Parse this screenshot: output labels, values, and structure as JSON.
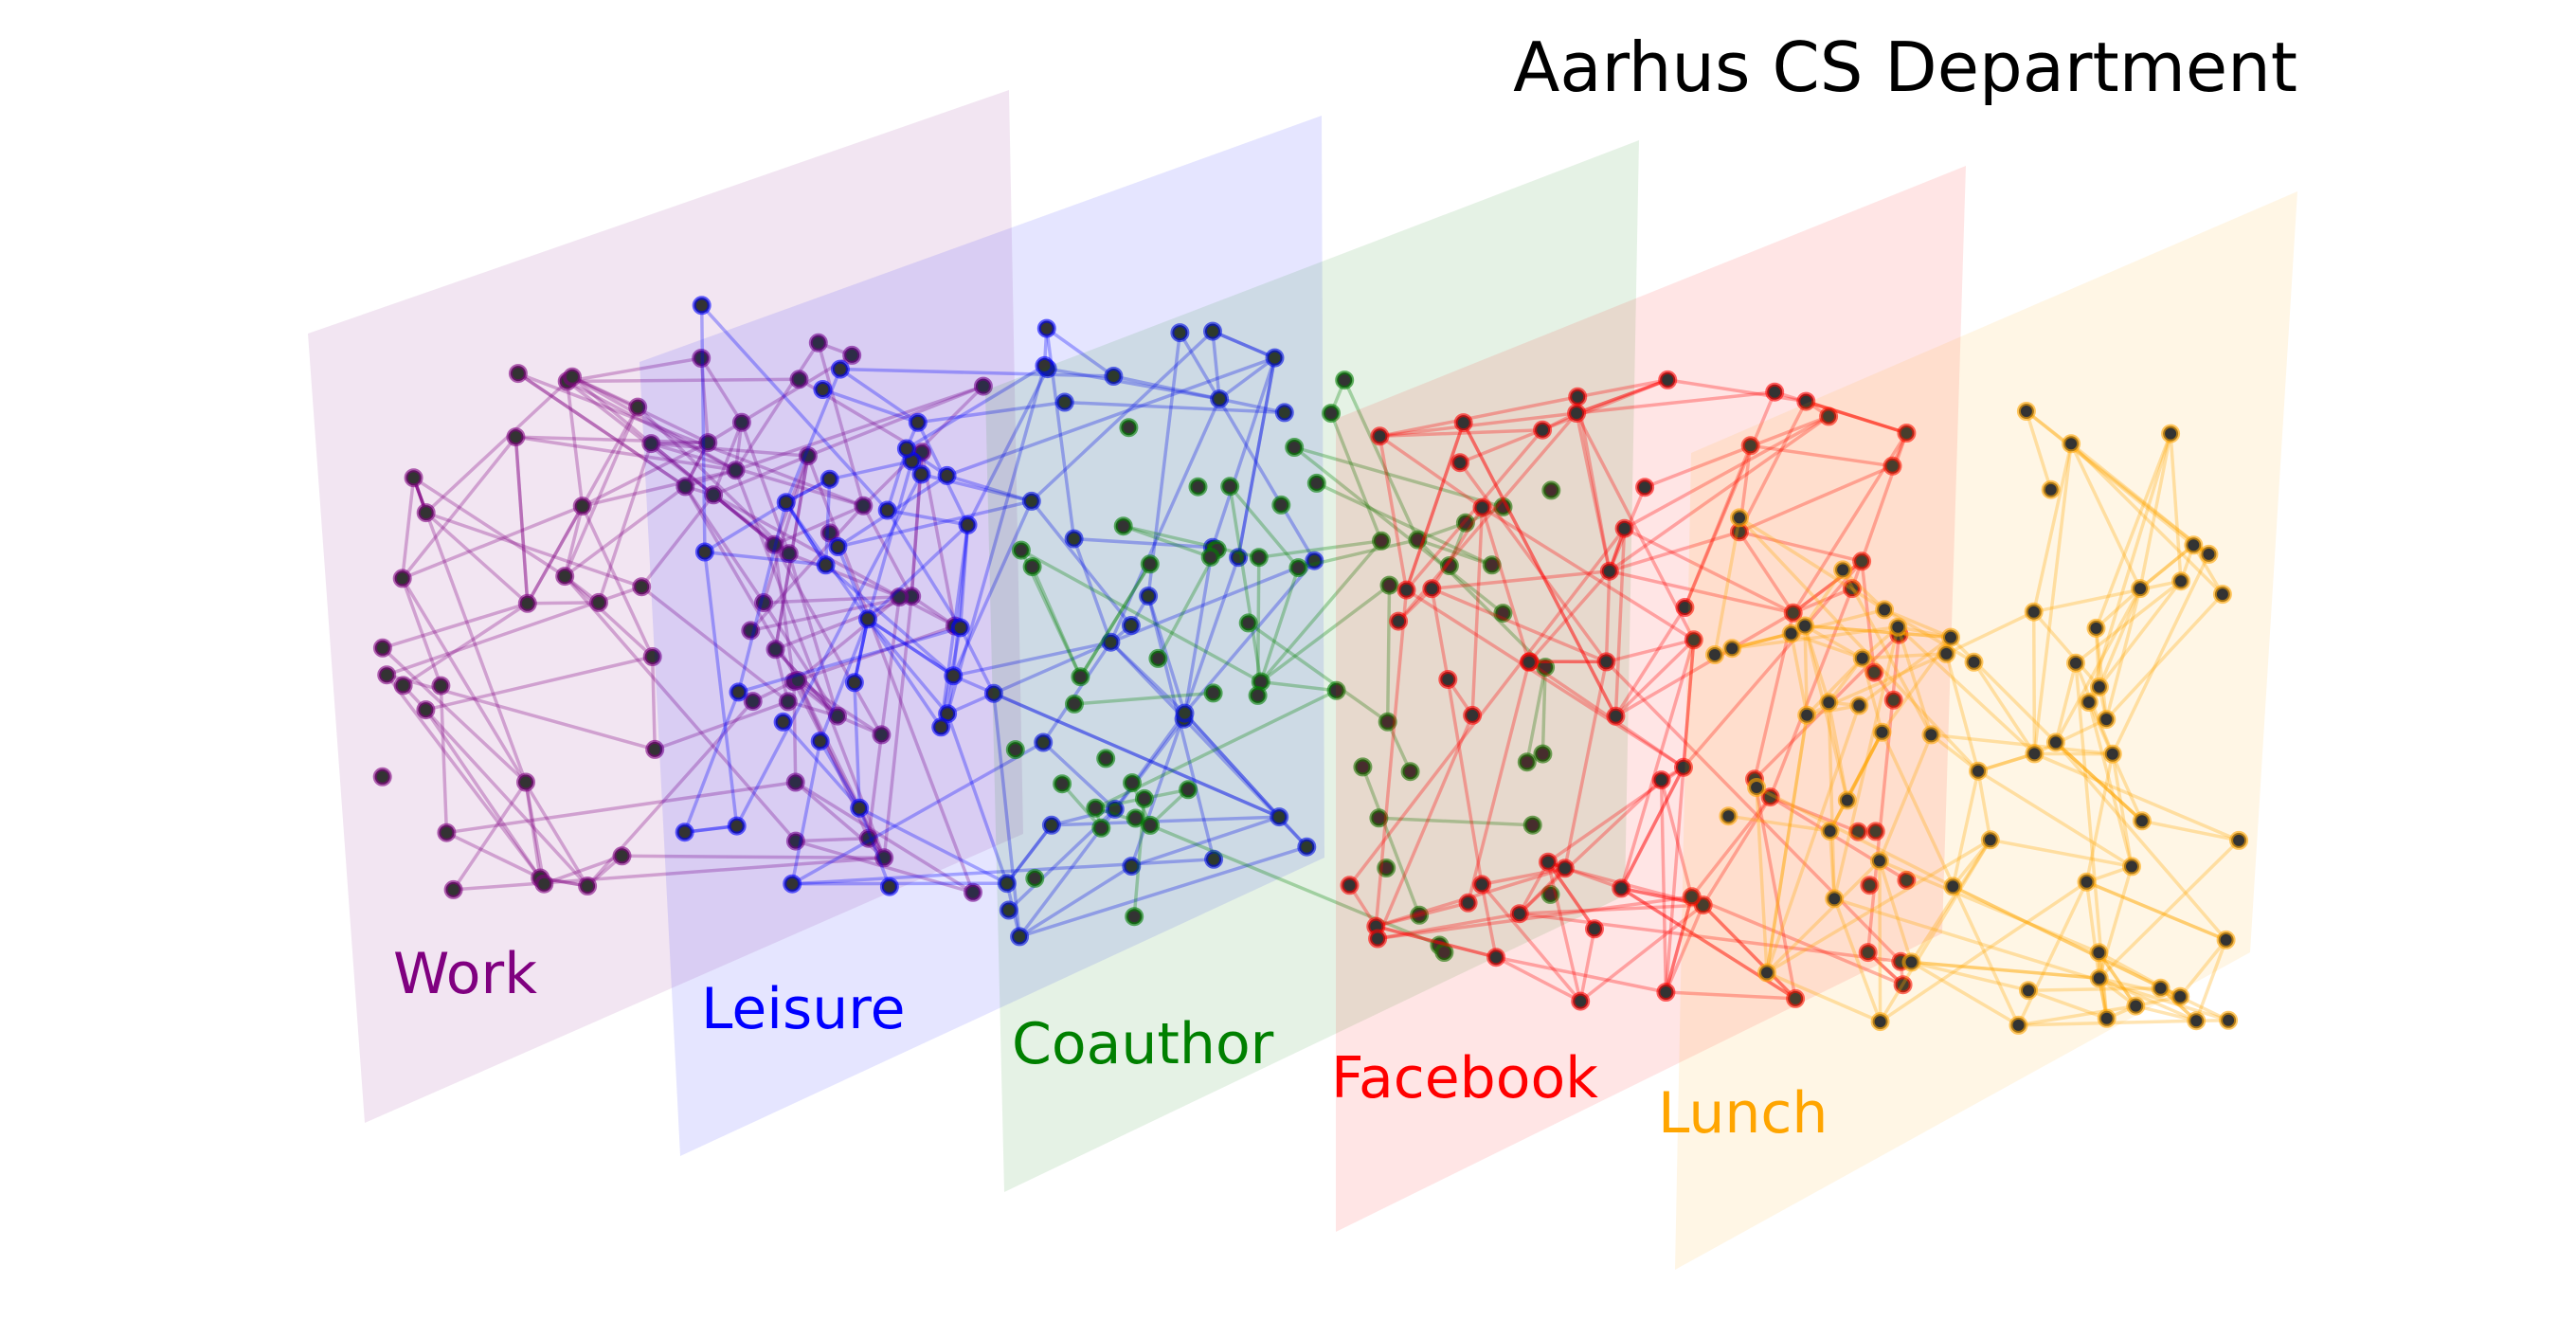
{
  "title": "Aarhus CS Department",
  "layers": [
    {
      "label": "Work",
      "color": "#800080"
    },
    {
      "label": "Leisure",
      "color": "#0000ff"
    },
    {
      "label": "Coauthor",
      "color": "#008000"
    },
    {
      "label": "Facebook",
      "color": "#ff0000"
    },
    {
      "label": "Lunch",
      "color": "#ffa500"
    }
  ],
  "node_style": {
    "fill": "#333333",
    "edge_alpha": 0.3,
    "plane_alpha": 0.1
  }
}
